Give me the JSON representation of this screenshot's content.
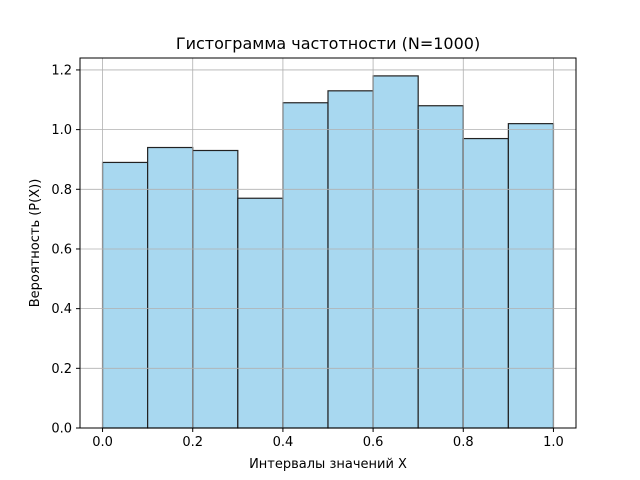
{
  "chart_data": {
    "type": "bar",
    "title": "Гистограмма частотности (N=1000)",
    "xlabel": "Интервалы значений X",
    "ylabel": "Вероятность (P(X))",
    "bin_edges": [
      0.0,
      0.1,
      0.2,
      0.3,
      0.4,
      0.5,
      0.6,
      0.7,
      0.8,
      0.9,
      1.0
    ],
    "values": [
      0.89,
      0.94,
      0.93,
      0.77,
      1.09,
      1.13,
      1.18,
      1.08,
      0.97,
      1.02
    ],
    "xlim": [
      -0.05,
      1.05
    ],
    "ylim": [
      0,
      1.24
    ],
    "xticks": [
      "0.0",
      "0.2",
      "0.4",
      "0.6",
      "0.8",
      "1.0"
    ],
    "yticks": [
      "0.0",
      "0.2",
      "0.4",
      "0.6",
      "0.8",
      "1.0",
      "1.2"
    ],
    "grid": true,
    "bar_color": "#a8d8f0",
    "edge_color": "#222222"
  }
}
